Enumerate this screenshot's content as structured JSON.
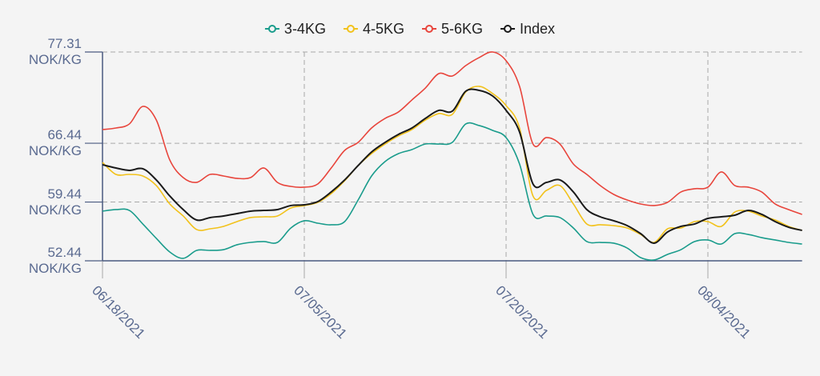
{
  "chart_data": {
    "type": "line",
    "categories": [
      "06/18/2021",
      null,
      null,
      null,
      null,
      null,
      null,
      null,
      null,
      null,
      null,
      null,
      null,
      null,
      null,
      "07/05/2021",
      null,
      null,
      null,
      null,
      null,
      null,
      null,
      null,
      null,
      null,
      null,
      null,
      null,
      null,
      "07/20/2021",
      null,
      null,
      null,
      null,
      null,
      null,
      null,
      null,
      null,
      null,
      null,
      null,
      null,
      null,
      "08/04/2021",
      null,
      null,
      null,
      null,
      null,
      null,
      null
    ],
    "series": [
      {
        "name": "3-4KG",
        "color": "#1a9c8c",
        "values": [
          58.35,
          58.54,
          58.44,
          56.82,
          55.11,
          53.49,
          52.73,
          53.68,
          53.68,
          53.77,
          54.35,
          54.63,
          54.73,
          54.63,
          56.35,
          57.21,
          56.92,
          56.73,
          57.11,
          59.68,
          62.54,
          64.26,
          65.21,
          65.69,
          66.35,
          66.35,
          66.54,
          68.74,
          68.55,
          67.97,
          67.12,
          63.97,
          57.97,
          57.78,
          57.59,
          56.35,
          54.73,
          54.63,
          54.54,
          53.96,
          52.82,
          52.54,
          53.2,
          53.77,
          54.73,
          54.92,
          54.44,
          55.68,
          55.58,
          55.2,
          54.92,
          54.63,
          54.44
        ]
      },
      {
        "name": "4-5KG",
        "color": "#f2c21b",
        "values": [
          64.16,
          62.73,
          62.73,
          62.54,
          61.4,
          59.21,
          57.78,
          56.16,
          56.25,
          56.54,
          57.11,
          57.59,
          57.68,
          57.78,
          58.73,
          59.02,
          59.4,
          60.44,
          61.97,
          63.78,
          65.21,
          66.35,
          67.31,
          68.07,
          69.21,
          69.98,
          69.88,
          72.55,
          73.22,
          72.36,
          70.93,
          68.26,
          60.16,
          60.83,
          61.4,
          59.21,
          56.82,
          56.73,
          56.63,
          56.35,
          55.58,
          54.63,
          56.25,
          56.35,
          57.11,
          57.11,
          56.54,
          58.25,
          58.35,
          57.78,
          57.3,
          56.54,
          56.06
        ]
      },
      {
        "name": "5-6KG",
        "color": "#e8453c",
        "values": [
          68.07,
          68.26,
          68.74,
          70.83,
          69.21,
          64.45,
          62.35,
          61.78,
          62.73,
          62.54,
          62.26,
          62.35,
          63.49,
          61.78,
          61.3,
          61.21,
          61.59,
          63.49,
          65.59,
          66.54,
          68.26,
          69.4,
          70.17,
          71.6,
          73.02,
          74.74,
          74.45,
          75.69,
          76.65,
          77.31,
          76.27,
          73.22,
          66.35,
          67.12,
          66.35,
          63.97,
          62.73,
          61.4,
          60.35,
          59.68,
          59.21,
          59.02,
          59.4,
          60.64,
          61.02,
          61.21,
          63.02,
          61.4,
          61.21,
          60.64,
          59.21,
          58.54,
          57.97
        ]
      },
      {
        "name": "Index",
        "color": "#1a1a1a",
        "values": [
          63.88,
          63.49,
          63.21,
          63.4,
          62.07,
          60.16,
          58.54,
          57.3,
          57.59,
          57.78,
          58.06,
          58.35,
          58.44,
          58.54,
          59.02,
          59.11,
          59.49,
          60.64,
          62.07,
          63.78,
          65.4,
          66.54,
          67.5,
          68.26,
          69.4,
          70.36,
          70.26,
          72.64,
          72.74,
          72.07,
          70.36,
          67.78,
          61.59,
          61.78,
          62.07,
          60.64,
          58.54,
          57.68,
          57.21,
          56.63,
          55.68,
          54.54,
          55.87,
          56.54,
          56.82,
          57.49,
          57.68,
          57.87,
          58.44,
          57.97,
          57.11,
          56.44,
          56.06
        ]
      }
    ],
    "ylim": [
      52.44,
      77.31
    ],
    "yticks": [
      {
        "value": 52.44,
        "label": "52.44\nNOK/KG"
      },
      {
        "value": 59.44,
        "label": "59.44\nNOK/KG"
      },
      {
        "value": 66.44,
        "label": "66.44\nNOK/KG"
      },
      {
        "value": 77.31,
        "label": "77.31\nNOK/KG"
      }
    ],
    "grid": true,
    "legend": "top"
  }
}
